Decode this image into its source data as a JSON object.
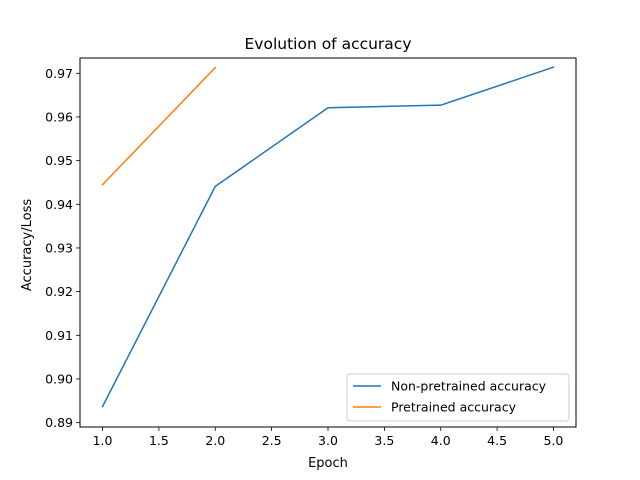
{
  "chart_data": {
    "type": "line",
    "title": "Evolution of accuracy",
    "xlabel": "Epoch",
    "ylabel": "Accuracy/Loss",
    "xlim": [
      0.8,
      5.2
    ],
    "ylim": [
      0.889,
      0.9735
    ],
    "xticks": [
      1.0,
      1.5,
      2.0,
      2.5,
      3.0,
      3.5,
      4.0,
      4.5,
      5.0
    ],
    "xtick_labels": [
      "1.0",
      "1.5",
      "2.0",
      "2.5",
      "3.0",
      "3.5",
      "4.0",
      "4.5",
      "5.0"
    ],
    "yticks": [
      0.89,
      0.9,
      0.91,
      0.92,
      0.93,
      0.94,
      0.95,
      0.96,
      0.97
    ],
    "ytick_labels": [
      "0.89",
      "0.90",
      "0.91",
      "0.92",
      "0.93",
      "0.94",
      "0.95",
      "0.96",
      "0.97"
    ],
    "grid": false,
    "legend_position": "lower-right",
    "series": [
      {
        "name": "Non-pretrained accuracy",
        "color": "#1f77b4",
        "x": [
          1,
          2,
          3,
          4,
          5
        ],
        "y": [
          0.8937,
          0.9441,
          0.9621,
          0.9627,
          0.9714
        ]
      },
      {
        "name": "Pretrained accuracy",
        "color": "#ff7f0e",
        "x": [
          1,
          2
        ],
        "y": [
          0.9445,
          0.9713
        ]
      }
    ]
  }
}
